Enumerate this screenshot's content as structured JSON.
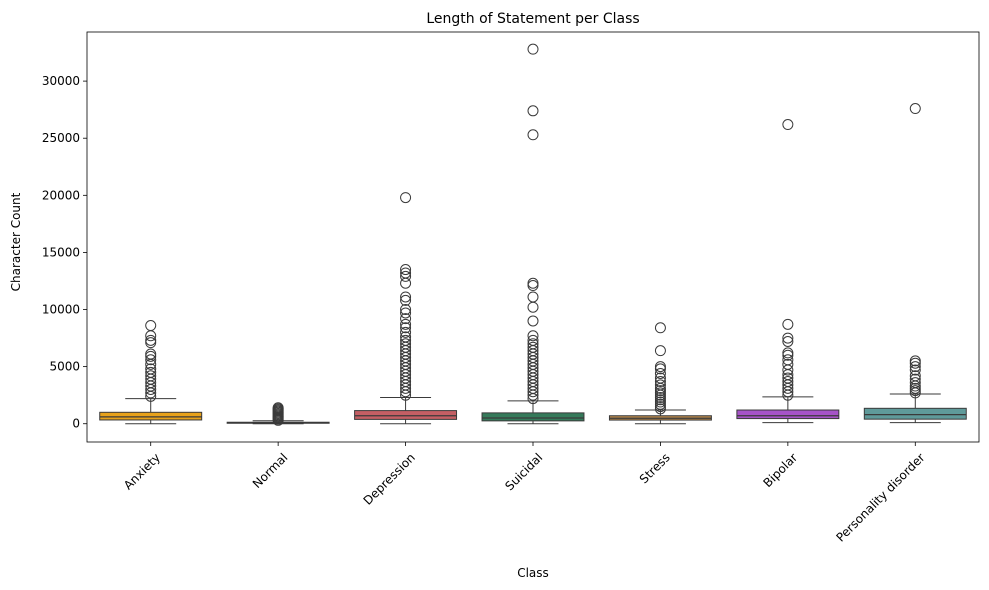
{
  "chart_data": {
    "type": "boxplot",
    "title": "Length of Statement per Class",
    "xlabel": "Class",
    "ylabel": "Character Count",
    "ylim": [
      -1600,
      34300
    ],
    "yticks": [
      0,
      5000,
      10000,
      15000,
      20000,
      25000,
      30000
    ],
    "grid": false,
    "legend": "none",
    "categories": [
      "Anxiety",
      "Normal",
      "Depression",
      "Suicidal",
      "Stress",
      "Bipolar",
      "Personality disorder"
    ],
    "colors": [
      "#e8a21b",
      "#5b6fb0",
      "#c45f64",
      "#357a5a",
      "#b8874a",
      "#a653c8",
      "#5f9a9a"
    ],
    "boxes": [
      {
        "whisker_low": 0,
        "q1": 330,
        "median": 600,
        "q3": 1000,
        "whisker_high": 2200,
        "outliers": [
          2400,
          2700,
          3000,
          3300,
          3600,
          3900,
          4200,
          4500,
          4800,
          5200,
          5600,
          5900,
          6100,
          7100,
          7300,
          7700,
          8600
        ]
      },
      {
        "whisker_low": 0,
        "q1": 40,
        "median": 75,
        "q3": 130,
        "whisker_high": 260,
        "outliers": [
          300,
          400,
          500,
          600,
          700,
          800,
          900,
          1000,
          1100,
          1200,
          1300,
          1400
        ]
      },
      {
        "whisker_low": 0,
        "q1": 380,
        "median": 700,
        "q3": 1150,
        "whisker_high": 2300,
        "outliers": [
          2500,
          2800,
          3100,
          3400,
          3700,
          4000,
          4300,
          4600,
          4900,
          5200,
          5500,
          5800,
          6100,
          6400,
          6700,
          7000,
          7300,
          7600,
          8000,
          8400,
          8700,
          9200,
          9700,
          10000,
          10800,
          11100,
          12300,
          12900,
          13200,
          13500,
          19800
        ]
      },
      {
        "whisker_low": 0,
        "q1": 250,
        "median": 500,
        "q3": 950,
        "whisker_high": 2000,
        "outliers": [
          2200,
          2500,
          2800,
          3100,
          3400,
          3700,
          4000,
          4300,
          4600,
          4900,
          5200,
          5500,
          5800,
          6100,
          6400,
          6700,
          7000,
          7300,
          7700,
          9000,
          10200,
          11100,
          12100,
          12300,
          25300,
          27400,
          32800
        ]
      },
      {
        "whisker_low": 0,
        "q1": 320,
        "median": 480,
        "q3": 700,
        "whisker_high": 1200,
        "outliers": [
          1300,
          1500,
          1700,
          1900,
          2100,
          2300,
          2500,
          2700,
          2900,
          3100,
          3400,
          3700,
          4000,
          4400,
          4800,
          5000,
          6400,
          8400
        ]
      },
      {
        "whisker_low": 100,
        "q1": 450,
        "median": 700,
        "q3": 1200,
        "whisker_high": 2350,
        "outliers": [
          2500,
          2800,
          3100,
          3400,
          3700,
          4000,
          4300,
          4700,
          5200,
          5600,
          6000,
          6200,
          7200,
          7500,
          8700,
          26200
        ]
      },
      {
        "whisker_low": 100,
        "q1": 400,
        "median": 800,
        "q3": 1350,
        "whisker_high": 2600,
        "outliers": [
          2700,
          2900,
          3100,
          3300,
          3600,
          3900,
          4200,
          4700,
          5000,
          5300,
          5500,
          27600
        ]
      }
    ]
  }
}
